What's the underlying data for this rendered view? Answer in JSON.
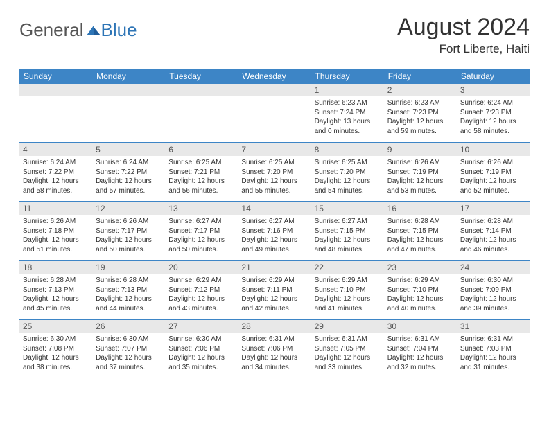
{
  "brand": {
    "part1": "General",
    "part2": "Blue"
  },
  "title": "August 2024",
  "location": "Fort Liberte, Haiti",
  "colors": {
    "header_bg": "#3d85c6",
    "header_text": "#ffffff",
    "daynum_bg": "#e8e8e8",
    "border": "#3d85c6",
    "text": "#333333",
    "brand_gray": "#555555",
    "brand_blue": "#2e75b6"
  },
  "day_headers": [
    "Sunday",
    "Monday",
    "Tuesday",
    "Wednesday",
    "Thursday",
    "Friday",
    "Saturday"
  ],
  "weeks": [
    [
      {
        "n": "",
        "sunrise": "",
        "sunset": "",
        "daylight": ""
      },
      {
        "n": "",
        "sunrise": "",
        "sunset": "",
        "daylight": ""
      },
      {
        "n": "",
        "sunrise": "",
        "sunset": "",
        "daylight": ""
      },
      {
        "n": "",
        "sunrise": "",
        "sunset": "",
        "daylight": ""
      },
      {
        "n": "1",
        "sunrise": "Sunrise: 6:23 AM",
        "sunset": "Sunset: 7:24 PM",
        "daylight": "Daylight: 13 hours and 0 minutes."
      },
      {
        "n": "2",
        "sunrise": "Sunrise: 6:23 AM",
        "sunset": "Sunset: 7:23 PM",
        "daylight": "Daylight: 12 hours and 59 minutes."
      },
      {
        "n": "3",
        "sunrise": "Sunrise: 6:24 AM",
        "sunset": "Sunset: 7:23 PM",
        "daylight": "Daylight: 12 hours and 58 minutes."
      }
    ],
    [
      {
        "n": "4",
        "sunrise": "Sunrise: 6:24 AM",
        "sunset": "Sunset: 7:22 PM",
        "daylight": "Daylight: 12 hours and 58 minutes."
      },
      {
        "n": "5",
        "sunrise": "Sunrise: 6:24 AM",
        "sunset": "Sunset: 7:22 PM",
        "daylight": "Daylight: 12 hours and 57 minutes."
      },
      {
        "n": "6",
        "sunrise": "Sunrise: 6:25 AM",
        "sunset": "Sunset: 7:21 PM",
        "daylight": "Daylight: 12 hours and 56 minutes."
      },
      {
        "n": "7",
        "sunrise": "Sunrise: 6:25 AM",
        "sunset": "Sunset: 7:20 PM",
        "daylight": "Daylight: 12 hours and 55 minutes."
      },
      {
        "n": "8",
        "sunrise": "Sunrise: 6:25 AM",
        "sunset": "Sunset: 7:20 PM",
        "daylight": "Daylight: 12 hours and 54 minutes."
      },
      {
        "n": "9",
        "sunrise": "Sunrise: 6:26 AM",
        "sunset": "Sunset: 7:19 PM",
        "daylight": "Daylight: 12 hours and 53 minutes."
      },
      {
        "n": "10",
        "sunrise": "Sunrise: 6:26 AM",
        "sunset": "Sunset: 7:19 PM",
        "daylight": "Daylight: 12 hours and 52 minutes."
      }
    ],
    [
      {
        "n": "11",
        "sunrise": "Sunrise: 6:26 AM",
        "sunset": "Sunset: 7:18 PM",
        "daylight": "Daylight: 12 hours and 51 minutes."
      },
      {
        "n": "12",
        "sunrise": "Sunrise: 6:26 AM",
        "sunset": "Sunset: 7:17 PM",
        "daylight": "Daylight: 12 hours and 50 minutes."
      },
      {
        "n": "13",
        "sunrise": "Sunrise: 6:27 AM",
        "sunset": "Sunset: 7:17 PM",
        "daylight": "Daylight: 12 hours and 50 minutes."
      },
      {
        "n": "14",
        "sunrise": "Sunrise: 6:27 AM",
        "sunset": "Sunset: 7:16 PM",
        "daylight": "Daylight: 12 hours and 49 minutes."
      },
      {
        "n": "15",
        "sunrise": "Sunrise: 6:27 AM",
        "sunset": "Sunset: 7:15 PM",
        "daylight": "Daylight: 12 hours and 48 minutes."
      },
      {
        "n": "16",
        "sunrise": "Sunrise: 6:28 AM",
        "sunset": "Sunset: 7:15 PM",
        "daylight": "Daylight: 12 hours and 47 minutes."
      },
      {
        "n": "17",
        "sunrise": "Sunrise: 6:28 AM",
        "sunset": "Sunset: 7:14 PM",
        "daylight": "Daylight: 12 hours and 46 minutes."
      }
    ],
    [
      {
        "n": "18",
        "sunrise": "Sunrise: 6:28 AM",
        "sunset": "Sunset: 7:13 PM",
        "daylight": "Daylight: 12 hours and 45 minutes."
      },
      {
        "n": "19",
        "sunrise": "Sunrise: 6:28 AM",
        "sunset": "Sunset: 7:13 PM",
        "daylight": "Daylight: 12 hours and 44 minutes."
      },
      {
        "n": "20",
        "sunrise": "Sunrise: 6:29 AM",
        "sunset": "Sunset: 7:12 PM",
        "daylight": "Daylight: 12 hours and 43 minutes."
      },
      {
        "n": "21",
        "sunrise": "Sunrise: 6:29 AM",
        "sunset": "Sunset: 7:11 PM",
        "daylight": "Daylight: 12 hours and 42 minutes."
      },
      {
        "n": "22",
        "sunrise": "Sunrise: 6:29 AM",
        "sunset": "Sunset: 7:10 PM",
        "daylight": "Daylight: 12 hours and 41 minutes."
      },
      {
        "n": "23",
        "sunrise": "Sunrise: 6:29 AM",
        "sunset": "Sunset: 7:10 PM",
        "daylight": "Daylight: 12 hours and 40 minutes."
      },
      {
        "n": "24",
        "sunrise": "Sunrise: 6:30 AM",
        "sunset": "Sunset: 7:09 PM",
        "daylight": "Daylight: 12 hours and 39 minutes."
      }
    ],
    [
      {
        "n": "25",
        "sunrise": "Sunrise: 6:30 AM",
        "sunset": "Sunset: 7:08 PM",
        "daylight": "Daylight: 12 hours and 38 minutes."
      },
      {
        "n": "26",
        "sunrise": "Sunrise: 6:30 AM",
        "sunset": "Sunset: 7:07 PM",
        "daylight": "Daylight: 12 hours and 37 minutes."
      },
      {
        "n": "27",
        "sunrise": "Sunrise: 6:30 AM",
        "sunset": "Sunset: 7:06 PM",
        "daylight": "Daylight: 12 hours and 35 minutes."
      },
      {
        "n": "28",
        "sunrise": "Sunrise: 6:31 AM",
        "sunset": "Sunset: 7:06 PM",
        "daylight": "Daylight: 12 hours and 34 minutes."
      },
      {
        "n": "29",
        "sunrise": "Sunrise: 6:31 AM",
        "sunset": "Sunset: 7:05 PM",
        "daylight": "Daylight: 12 hours and 33 minutes."
      },
      {
        "n": "30",
        "sunrise": "Sunrise: 6:31 AM",
        "sunset": "Sunset: 7:04 PM",
        "daylight": "Daylight: 12 hours and 32 minutes."
      },
      {
        "n": "31",
        "sunrise": "Sunrise: 6:31 AM",
        "sunset": "Sunset: 7:03 PM",
        "daylight": "Daylight: 12 hours and 31 minutes."
      }
    ]
  ]
}
